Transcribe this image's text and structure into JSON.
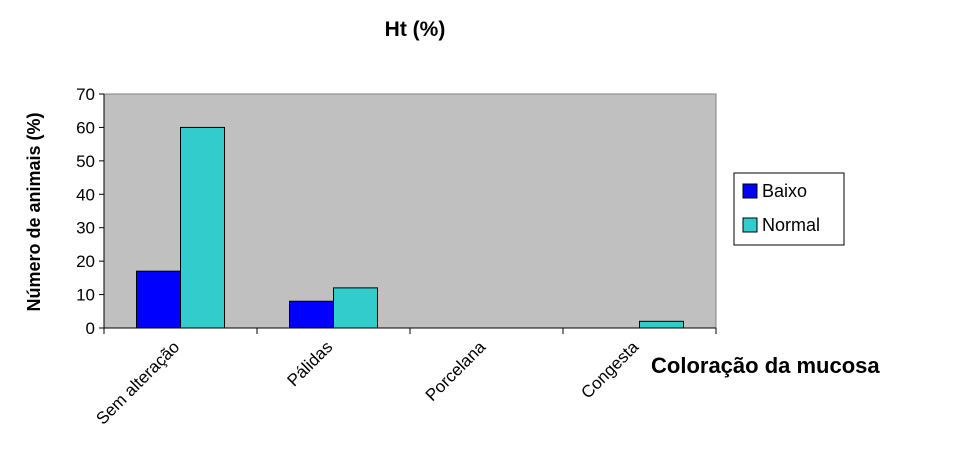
{
  "chart_data": {
    "type": "bar",
    "title": "Ht (%)",
    "xlabel": "Coloração da mucosa",
    "ylabel": "Número de animais (%)",
    "categories": [
      "Sem alteração",
      "Pálidas",
      "Porcelana",
      "Congesta"
    ],
    "series": [
      {
        "name": "Baixo",
        "values": [
          17,
          8,
          0,
          0
        ],
        "color": "#0000FF"
      },
      {
        "name": "Normal",
        "values": [
          60,
          12,
          0,
          2
        ],
        "color": "#33CCCC"
      }
    ],
    "ylim": [
      0,
      70
    ],
    "yticks": [
      0,
      10,
      20,
      30,
      40,
      50,
      60,
      70
    ],
    "grid": false,
    "legend": "right",
    "plot_background": "#C0C0C0"
  }
}
